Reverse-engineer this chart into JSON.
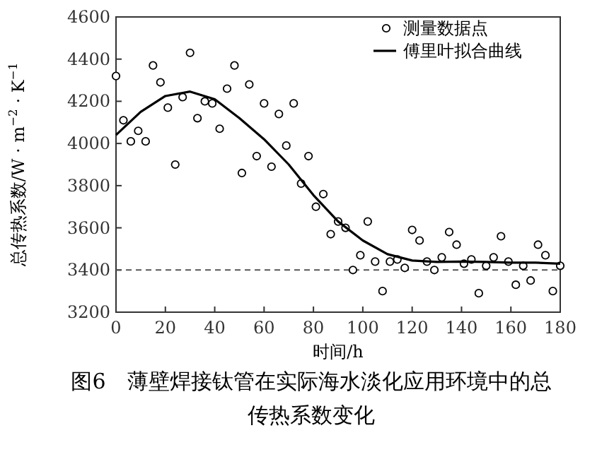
{
  "chart_data": {
    "type": "scatter",
    "title": "图6　薄壁焊接钛管在实际海水淡化应用环境中的总传热系数变化",
    "xlabel": "时间/h",
    "ylabel": "总传热系数/W · m$^{−2}$ · K$^{−1}$",
    "xlim": [
      0,
      180
    ],
    "xticks": [
      0,
      20,
      40,
      60,
      80,
      100,
      120,
      140,
      160,
      180
    ],
    "ylim": [
      3200,
      4600
    ],
    "yticks": [
      3200,
      3400,
      3600,
      3800,
      4000,
      4200,
      4400,
      4600
    ],
    "grid": false,
    "legend": "top right",
    "marker": "circle",
    "series": [
      {
        "name": "测量数据点",
        "color": "#000000",
        "x": [
          0,
          3,
          6,
          9,
          12,
          15,
          18,
          21,
          24,
          27,
          30,
          33,
          36,
          39,
          42,
          45,
          48,
          51,
          54,
          57,
          60,
          63,
          66,
          69,
          72,
          75,
          78,
          81,
          84,
          87,
          90,
          93,
          96,
          99,
          102,
          105,
          108,
          111,
          114,
          117,
          120,
          123,
          126,
          129,
          132,
          135,
          138,
          141,
          144,
          147,
          150,
          153,
          156,
          159,
          162,
          165,
          168,
          171,
          174,
          177,
          180
        ],
        "values": [
          4320,
          4110,
          4010,
          4060,
          4010,
          4370,
          4290,
          4170,
          3900,
          4220,
          4430,
          4120,
          4200,
          4190,
          4070,
          4260,
          4370,
          3860,
          4280,
          3940,
          4190,
          3890,
          4140,
          3990,
          4190,
          3810,
          3940,
          3700,
          3760,
          3570,
          3630,
          3600,
          3400,
          3470,
          3630,
          3440,
          3300,
          3440,
          3450,
          3410,
          3590,
          3540,
          3440,
          3400,
          3460,
          3580,
          3520,
          3430,
          3450,
          3290,
          3420,
          3460,
          3560,
          3440,
          3330,
          3420,
          3350,
          3520,
          3470,
          3300,
          3420
        ]
      },
      {
        "name": "傅里叶拟合曲线",
        "type": "line",
        "color": "#000000",
        "line_style": "solid",
        "marker": "none",
        "x": [
          0,
          10,
          20,
          30,
          40,
          50,
          60,
          70,
          80,
          90,
          100,
          110,
          120,
          130,
          140,
          150,
          160,
          170,
          180
        ],
        "values": [
          4040,
          4150,
          4225,
          4246,
          4210,
          4120,
          4020,
          3900,
          3755,
          3630,
          3540,
          3475,
          3445,
          3438,
          3440,
          3438,
          3435,
          3435,
          3430
        ]
      }
    ],
    "ref_lines": [
      {
        "axis": "y",
        "value": 3400,
        "color": "#555555",
        "line_style": "dashed"
      }
    ]
  }
}
